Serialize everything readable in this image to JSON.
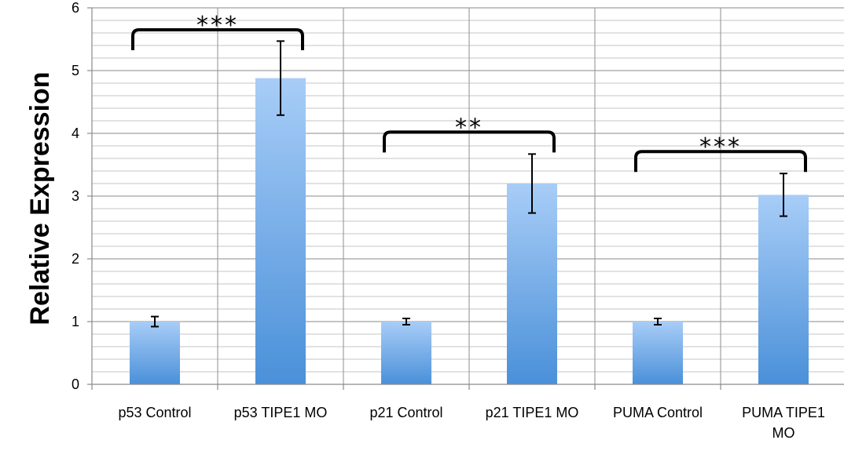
{
  "chart_data": {
    "type": "bar",
    "categories": [
      "p53 Control",
      "p53 TIPE1 MO",
      "p21 Control",
      "p21 TIPE1 MO",
      "PUMA Control",
      "PUMA TIPE1 MO"
    ],
    "category_lines": [
      [
        "p53 Control"
      ],
      [
        "p53 TIPE1 MO"
      ],
      [
        "p21 Control"
      ],
      [
        "p21 TIPE1 MO"
      ],
      [
        "PUMA Control"
      ],
      [
        "PUMA TIPE1",
        "MO"
      ]
    ],
    "values": [
      1.0,
      4.88,
      1.0,
      3.2,
      1.0,
      3.02
    ],
    "error_bars": [
      0.08,
      0.59,
      0.05,
      0.47,
      0.05,
      0.34
    ],
    "ylabel": "Relative Expression",
    "ylim": [
      0,
      6
    ],
    "y_ticks": [
      "0",
      "1",
      "2",
      "3",
      "4",
      "5",
      "6"
    ],
    "minor_grid_step": 0.2,
    "grid": true,
    "significance": [
      {
        "from": 0,
        "to": 1,
        "label": "***"
      },
      {
        "from": 2,
        "to": 3,
        "label": "**"
      },
      {
        "from": 4,
        "to": 5,
        "label": "***"
      }
    ],
    "colors": {
      "bar_top": "#a8cdf7",
      "bar_bottom": "#4a90d9",
      "grid_major": "#a0a0a0",
      "grid_minor": "#c4c4c4"
    }
  }
}
